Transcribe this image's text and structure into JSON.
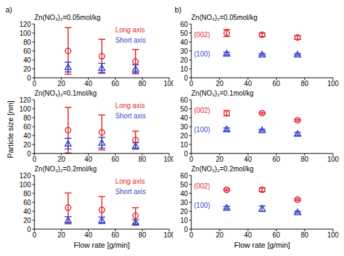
{
  "panel_labels": [
    "a)",
    "b)"
  ],
  "ylabel": "Particle size [nm]",
  "chart_data": [
    {
      "type": "scatter",
      "title": "Zn(NO₃)₂=0.05mol/kg",
      "x": [
        25,
        50,
        75
      ],
      "xlim": [
        0,
        100
      ],
      "xticks": [
        0,
        20,
        40,
        60,
        80,
        100
      ],
      "ylim": [
        0,
        120
      ],
      "yticks": [
        0,
        20,
        40,
        60,
        80,
        100,
        120
      ],
      "series": [
        {
          "name": "Long axis",
          "color": "#e0282e",
          "marker": "circle",
          "values": [
            60,
            48,
            36
          ],
          "errors": [
            52,
            38,
            27
          ]
        },
        {
          "name": "Short axis",
          "color": "#3b46c8",
          "marker": "triangle",
          "values": [
            24,
            22,
            20
          ],
          "errors": [
            11,
            10,
            9
          ]
        }
      ]
    },
    {
      "type": "scatter",
      "title": "Zn(NO₃)₂=0.1mol/kg",
      "x": [
        25,
        50,
        75
      ],
      "xlim": [
        0,
        100
      ],
      "xticks": [
        0,
        20,
        40,
        60,
        80,
        100
      ],
      "ylim": [
        0,
        120
      ],
      "yticks": [
        0,
        20,
        40,
        60,
        80,
        100,
        120
      ],
      "series": [
        {
          "name": "Long axis",
          "color": "#e0282e",
          "marker": "circle",
          "values": [
            52,
            47,
            30
          ],
          "errors": [
            51,
            39,
            20
          ]
        },
        {
          "name": "Short axis",
          "color": "#3b46c8",
          "marker": "triangle",
          "values": [
            22,
            24,
            17
          ],
          "errors": [
            12,
            12,
            7
          ]
        }
      ]
    },
    {
      "type": "scatter",
      "title": "Zn(NO₃)₂=0.2mol/kg",
      "xlabel": "Flow rate [g/min]",
      "x": [
        25,
        50,
        75
      ],
      "xlim": [
        0,
        100
      ],
      "xticks": [
        0,
        20,
        40,
        60,
        80,
        100
      ],
      "ylim": [
        0,
        120
      ],
      "yticks": [
        0,
        20,
        40,
        60,
        80,
        100,
        120
      ],
      "series": [
        {
          "name": "Long axis",
          "color": "#e0282e",
          "marker": "circle",
          "values": [
            48,
            43,
            30
          ],
          "errors": [
            33,
            30,
            18
          ]
        },
        {
          "name": "Short axis",
          "color": "#3b46c8",
          "marker": "triangle",
          "values": [
            20,
            20,
            15
          ],
          "errors": [
            8,
            7,
            6
          ]
        }
      ]
    },
    {
      "type": "scatter",
      "title": "Zn(NO₃)₂=0.05mol/kg",
      "x": [
        25,
        50,
        75
      ],
      "xlim": [
        0,
        100
      ],
      "xticks": [
        0,
        20,
        40,
        60,
        80,
        100
      ],
      "ylim": [
        0,
        60
      ],
      "yticks": [
        0,
        10,
        20,
        30,
        40,
        50,
        60
      ],
      "series": [
        {
          "name": "(002)",
          "color": "#e0282e",
          "marker": "circle",
          "values": [
            50,
            48,
            45
          ],
          "errors": [
            4,
            2,
            2
          ]
        },
        {
          "name": "(100)",
          "color": "#3b46c8",
          "marker": "triangle",
          "values": [
            27,
            26,
            26
          ],
          "errors": [
            1.5,
            1,
            1
          ]
        }
      ]
    },
    {
      "type": "scatter",
      "title": "Zn(NO₃)₂=0.1mol/kg",
      "x": [
        25,
        50,
        75
      ],
      "xlim": [
        0,
        100
      ],
      "xticks": [
        0,
        20,
        40,
        60,
        80,
        100
      ],
      "ylim": [
        0,
        60
      ],
      "yticks": [
        0,
        10,
        20,
        30,
        40,
        50,
        60
      ],
      "series": [
        {
          "name": "(002)",
          "color": "#e0282e",
          "marker": "circle",
          "values": [
            45,
            45,
            37
          ],
          "errors": [
            3,
            1,
            1
          ]
        },
        {
          "name": "(100)",
          "color": "#3b46c8",
          "marker": "triangle",
          "values": [
            27,
            26,
            22
          ],
          "errors": [
            1.5,
            1,
            1.5
          ]
        }
      ]
    },
    {
      "type": "scatter",
      "title": "Zn(NO₃)₂=0.2mol/kg",
      "xlabel": "Flow rate [g/min]",
      "x": [
        25,
        50,
        75
      ],
      "xlim": [
        0,
        100
      ],
      "xticks": [
        0,
        20,
        40,
        60,
        80,
        100
      ],
      "ylim": [
        0,
        60
      ],
      "yticks": [
        0,
        10,
        20,
        30,
        40,
        50,
        60
      ],
      "series": [
        {
          "name": "(002)",
          "color": "#e0282e",
          "marker": "circle",
          "values": [
            44,
            44,
            33
          ],
          "errors": [
            1,
            2,
            1
          ]
        },
        {
          "name": "(100)",
          "color": "#3b46c8",
          "marker": "triangle",
          "values": [
            24,
            23,
            19
          ],
          "errors": [
            1.5,
            3,
            1
          ]
        }
      ]
    }
  ]
}
